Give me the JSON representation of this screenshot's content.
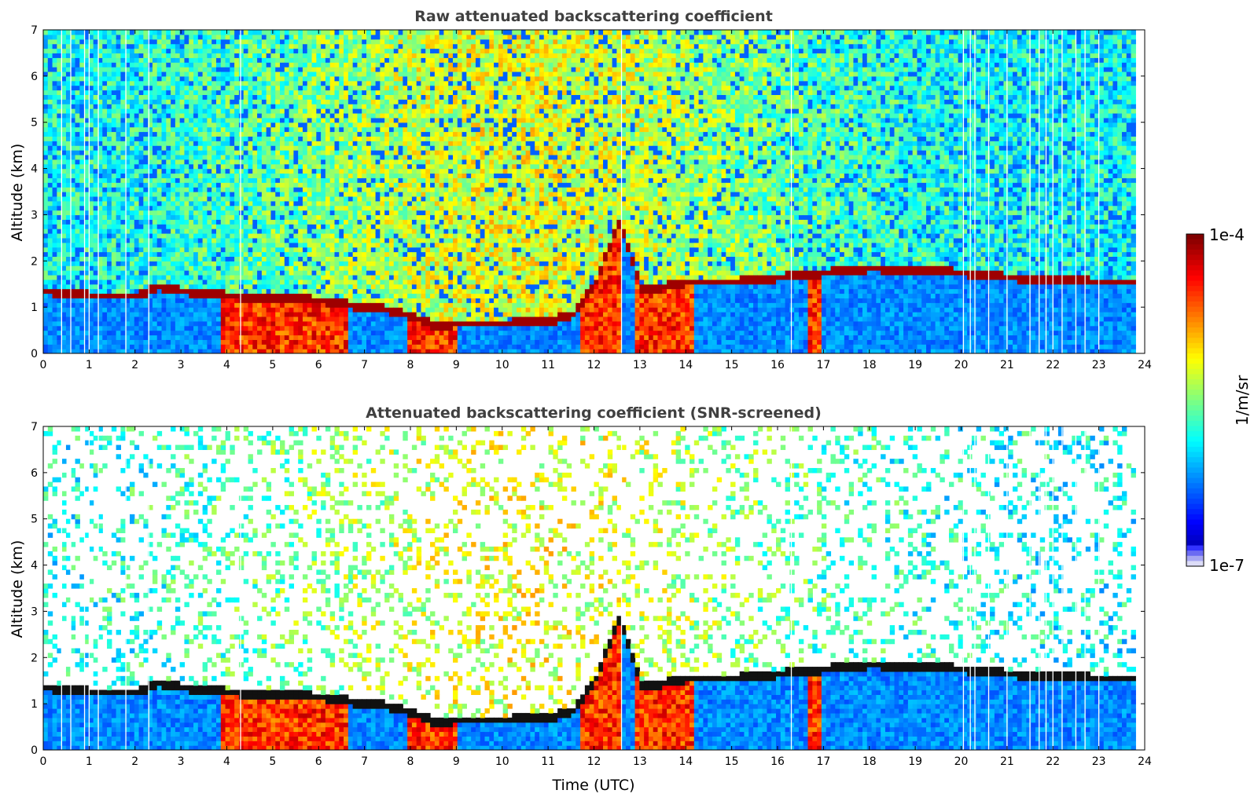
{
  "chart_data": [
    {
      "type": "heatmap",
      "title": "Raw attenuated backscattering coefficient",
      "xlabel": "",
      "ylabel": "Altitude (km)",
      "xlim": [
        0,
        24
      ],
      "ylim": [
        0,
        7
      ],
      "xticks": [
        0,
        1,
        2,
        3,
        4,
        5,
        6,
        7,
        8,
        9,
        10,
        11,
        12,
        13,
        14,
        15,
        16,
        17,
        18,
        19,
        20,
        21,
        22,
        23,
        24
      ],
      "yticks": [
        0,
        1,
        2,
        3,
        4,
        5,
        6,
        7
      ],
      "grid": false,
      "colormap": "jet",
      "color_scale": "log",
      "color_range": [
        1e-07,
        0.0001
      ],
      "screened": false,
      "cloud_layer": {
        "x": [
          0,
          1,
          2,
          2.5,
          3,
          4,
          5,
          6,
          7,
          7.5,
          8,
          8.5,
          9,
          10,
          11,
          11.5,
          12,
          12.5,
          13,
          14,
          15,
          16,
          17,
          18,
          19,
          20,
          21,
          22,
          23,
          23.8
        ],
        "y": [
          1.3,
          1.2,
          1.2,
          1.4,
          1.3,
          1.2,
          1.15,
          1.1,
          0.95,
          0.9,
          0.75,
          0.55,
          0.6,
          0.6,
          0.65,
          0.8,
          1.5,
          2.8,
          1.3,
          1.5,
          1.5,
          1.6,
          1.7,
          1.8,
          1.75,
          1.7,
          1.6,
          1.55,
          1.5,
          1.5
        ]
      },
      "precipitation_periods": [
        {
          "start": 3.8,
          "end": 6.6
        },
        {
          "start": 7.9,
          "end": 9.0
        },
        {
          "start": 11.7,
          "end": 12.5
        },
        {
          "start": 12.8,
          "end": 14.1
        },
        {
          "start": 16.6,
          "end": 16.9
        }
      ],
      "missing_data_times": [
        0.4,
        0.6,
        0.9,
        1.0,
        1.2,
        1.8,
        2.3,
        4.3,
        12.6,
        16.3,
        20.05,
        20.2,
        20.3,
        20.6,
        21.0,
        21.5,
        21.7,
        21.85,
        22.0,
        22.2,
        22.5,
        22.7,
        23.0
      ]
    },
    {
      "type": "heatmap",
      "title": "Attenuated backscattering coefficient (SNR-screened)",
      "xlabel": "Time (UTC)",
      "ylabel": "Altitude (km)",
      "xlim": [
        0,
        24
      ],
      "ylim": [
        0,
        7
      ],
      "xticks": [
        0,
        1,
        2,
        3,
        4,
        5,
        6,
        7,
        8,
        9,
        10,
        11,
        12,
        13,
        14,
        15,
        16,
        17,
        18,
        19,
        20,
        21,
        22,
        23,
        24
      ],
      "yticks": [
        0,
        1,
        2,
        3,
        4,
        5,
        6,
        7
      ],
      "grid": false,
      "colormap": "jet",
      "color_scale": "log",
      "color_range": [
        1e-07,
        0.0001
      ],
      "screened": true,
      "cloud_layer": {
        "x": [
          0,
          1,
          2,
          2.5,
          3,
          4,
          5,
          6,
          7,
          7.5,
          8,
          8.5,
          9,
          10,
          11,
          11.5,
          12,
          12.5,
          13,
          14,
          15,
          16,
          17,
          18,
          19,
          20,
          21,
          22,
          23,
          23.8
        ],
        "y": [
          1.3,
          1.2,
          1.2,
          1.4,
          1.3,
          1.2,
          1.15,
          1.1,
          0.95,
          0.9,
          0.75,
          0.55,
          0.6,
          0.6,
          0.65,
          0.8,
          1.5,
          2.8,
          1.3,
          1.5,
          1.5,
          1.6,
          1.7,
          1.8,
          1.75,
          1.7,
          1.6,
          1.55,
          1.5,
          1.5
        ]
      },
      "precipitation_periods": [
        {
          "start": 3.8,
          "end": 6.6
        },
        {
          "start": 7.9,
          "end": 9.0
        },
        {
          "start": 11.7,
          "end": 12.5
        },
        {
          "start": 12.8,
          "end": 14.1
        },
        {
          "start": 16.6,
          "end": 16.9
        }
      ],
      "missing_data_times": [
        0.4,
        0.6,
        0.9,
        1.0,
        1.2,
        1.8,
        2.3,
        4.3,
        12.6,
        16.3,
        20.05,
        20.2,
        20.3,
        20.6,
        21.0,
        21.5,
        21.7,
        21.85,
        22.0,
        22.2,
        22.5,
        22.7,
        23.0
      ]
    }
  ],
  "colorbar": {
    "label": "1/m/sr",
    "max_label": "1e-4",
    "min_label": "1e-7"
  }
}
